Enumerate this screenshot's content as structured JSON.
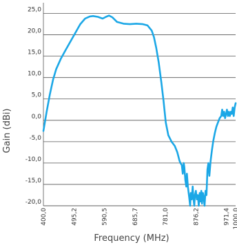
{
  "chart_data": {
    "type": "line",
    "xlabel": "Frequency (MHz)",
    "ylabel": "Gain (dBi)",
    "xlim": [
      400,
      1000
    ],
    "ylim": [
      -20,
      27.5
    ],
    "x_ticks": [
      400.0,
      495.2,
      590.5,
      685.7,
      781.0,
      876.2,
      971.4,
      1000.0
    ],
    "x_tick_labels": [
      "400,0",
      "495,2",
      "590,5",
      "685,7",
      "781,0",
      "876,2",
      "971,4",
      "1000,0"
    ],
    "y_ticks": [
      -20,
      -15,
      -10,
      -5,
      0,
      5,
      10,
      15,
      20,
      25
    ],
    "y_tick_labels": [
      "-20,0",
      "-15,0",
      "-10,0",
      "-5,0",
      "0,0",
      "5,0",
      "10,0",
      "15,0",
      "20,0",
      "25,0"
    ],
    "grid": "horizontal",
    "line_color": "#1ba7e6",
    "series": [
      {
        "x": [
          400,
          410,
          420,
          430,
          440,
          455,
          470,
          485,
          500,
          515,
          530,
          545,
          555,
          570,
          585,
          595,
          605,
          615,
          630,
          650,
          670,
          690,
          710,
          725,
          738,
          745,
          752,
          760,
          768,
          775,
          782,
          790,
          800,
          810,
          818,
          825,
          828,
          832,
          835,
          838,
          840,
          843,
          846,
          848,
          851,
          855,
          858,
          860,
          863,
          866,
          868,
          871,
          873,
          876,
          879,
          882,
          885,
          888,
          890,
          893,
          895,
          898,
          901,
          903,
          906,
          909,
          912,
          915,
          918,
          922,
          926,
          930,
          935,
          940,
          945,
          950,
          955,
          958,
          961,
          964,
          967,
          970,
          973,
          976,
          979,
          982,
          985,
          988,
          991,
          994,
          997,
          1000
        ],
        "y": [
          -2.5,
          2,
          6,
          9.5,
          12,
          14.5,
          16.5,
          18.5,
          20.5,
          22.5,
          23.8,
          24.3,
          24.4,
          24.2,
          23.8,
          24.2,
          24.5,
          24.1,
          23.0,
          22.6,
          22.5,
          22.6,
          22.5,
          22.2,
          21.0,
          19.5,
          17.0,
          13.5,
          9.0,
          4.5,
          -0.5,
          -3.5,
          -5.0,
          -6.0,
          -7.5,
          -9.5,
          -10.0,
          -10.5,
          -12.5,
          -10.0,
          -11.0,
          -14.0,
          -15.5,
          -12.5,
          -15.5,
          -18.0,
          -20.0,
          -17.0,
          -18.5,
          -15.5,
          -18.0,
          -20.0,
          -17.5,
          -16.5,
          -18.5,
          -17.5,
          -20.0,
          -17.0,
          -19.0,
          -16.5,
          -19.5,
          -17.0,
          -18.5,
          -20.0,
          -16.5,
          -17.5,
          -11.5,
          -10.0,
          -13.0,
          -9.5,
          -7.0,
          -5.0,
          -3.0,
          -1.5,
          -0.5,
          0.5,
          1.0,
          2.5,
          1.0,
          2.0,
          0.5,
          1.5,
          2.5,
          1.0,
          2.0,
          1.0,
          2.0,
          1.5,
          3.0,
          1.0,
          3.0,
          4.0
        ]
      }
    ]
  }
}
